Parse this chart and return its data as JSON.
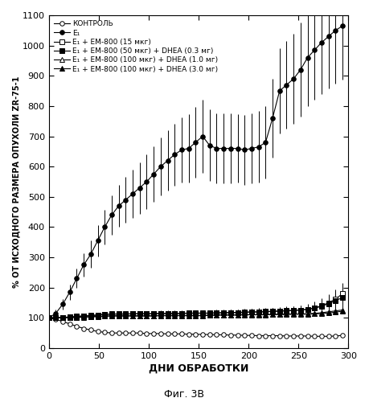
{
  "xlabel": "ДНИ ОБРАБОТКИ",
  "ylabel": "% ОТ ИСХОДНОГО РАЗМЕРА ОПУХОЛИ ZR-75-1",
  "caption": "Фиг. 3В",
  "ylim": [
    0,
    1100
  ],
  "xlim": [
    0,
    300
  ],
  "yticks": [
    0,
    100,
    200,
    300,
    400,
    500,
    600,
    700,
    800,
    900,
    1000,
    1100
  ],
  "xticks": [
    0,
    50,
    100,
    150,
    200,
    250,
    300
  ],
  "series": [
    {
      "label": "КОНТРОЛЬ",
      "marker": "o",
      "filled": false,
      "x": [
        0,
        7,
        14,
        21,
        28,
        35,
        42,
        49,
        56,
        63,
        70,
        77,
        84,
        91,
        98,
        105,
        112,
        119,
        126,
        133,
        140,
        147,
        154,
        161,
        168,
        175,
        182,
        189,
        196,
        203,
        210,
        217,
        224,
        231,
        238,
        245,
        252,
        259,
        266,
        273,
        280,
        287,
        294
      ],
      "y": [
        100,
        95,
        88,
        80,
        72,
        65,
        60,
        55,
        52,
        50,
        50,
        50,
        50,
        50,
        48,
        48,
        48,
        47,
        47,
        47,
        46,
        46,
        45,
        45,
        44,
        44,
        43,
        43,
        42,
        42,
        41,
        41,
        41,
        41,
        40,
        40,
        40,
        40,
        39,
        39,
        39,
        40,
        42
      ],
      "yerr": [
        4,
        4,
        4,
        4,
        4,
        4,
        4,
        4,
        4,
        4,
        4,
        4,
        4,
        4,
        4,
        4,
        4,
        4,
        4,
        4,
        4,
        4,
        4,
        4,
        4,
        4,
        4,
        4,
        4,
        4,
        4,
        4,
        4,
        4,
        4,
        4,
        4,
        4,
        4,
        4,
        4,
        4,
        4
      ]
    },
    {
      "label": "Е₁",
      "marker": "o",
      "filled": true,
      "x": [
        0,
        7,
        14,
        21,
        28,
        35,
        42,
        49,
        56,
        63,
        70,
        77,
        84,
        91,
        98,
        105,
        112,
        119,
        126,
        133,
        140,
        147,
        154,
        161,
        168,
        175,
        182,
        189,
        196,
        203,
        210,
        217,
        224,
        231,
        238,
        245,
        252,
        259,
        266,
        273,
        280,
        287,
        294
      ],
      "y": [
        100,
        115,
        145,
        185,
        230,
        275,
        310,
        355,
        400,
        440,
        470,
        490,
        510,
        530,
        550,
        575,
        600,
        620,
        640,
        655,
        660,
        680,
        700,
        670,
        660,
        660,
        660,
        660,
        655,
        660,
        665,
        680,
        760,
        850,
        870,
        890,
        920,
        960,
        985,
        1010,
        1030,
        1050,
        1065
      ],
      "yerr": [
        8,
        12,
        18,
        25,
        32,
        38,
        45,
        52,
        58,
        65,
        70,
        75,
        80,
        85,
        90,
        92,
        95,
        100,
        102,
        108,
        112,
        118,
        122,
        118,
        115,
        115,
        115,
        112,
        115,
        115,
        118,
        120,
        130,
        140,
        145,
        150,
        155,
        160,
        165,
        170,
        172,
        175,
        178
      ]
    },
    {
      "label": "Е₁ + ЕМ-800 (15 мкг)",
      "marker": "s",
      "filled": false,
      "x": [
        0,
        7,
        14,
        21,
        28,
        35,
        42,
        49,
        56,
        63,
        70,
        77,
        84,
        91,
        98,
        105,
        112,
        119,
        126,
        133,
        140,
        147,
        154,
        161,
        168,
        175,
        182,
        189,
        196,
        203,
        210,
        217,
        224,
        231,
        238,
        245,
        252,
        259,
        266,
        273,
        280,
        287,
        294
      ],
      "y": [
        100,
        100,
        102,
        103,
        105,
        107,
        108,
        110,
        112,
        113,
        113,
        113,
        114,
        114,
        114,
        114,
        115,
        115,
        115,
        115,
        116,
        116,
        116,
        116,
        117,
        117,
        118,
        118,
        119,
        120,
        120,
        121,
        122,
        123,
        124,
        125,
        126,
        128,
        133,
        140,
        150,
        162,
        180
      ],
      "yerr": [
        5,
        5,
        5,
        6,
        6,
        6,
        7,
        7,
        7,
        8,
        8,
        8,
        8,
        8,
        8,
        9,
        9,
        9,
        9,
        9,
        9,
        10,
        10,
        10,
        10,
        10,
        10,
        10,
        11,
        11,
        12,
        12,
        12,
        13,
        13,
        14,
        15,
        18,
        22,
        25,
        28,
        32,
        35
      ]
    },
    {
      "label": "Е₁ + ЕМ-800 (50 мкг) + DHEA (0.3 мг)",
      "marker": "s",
      "filled": true,
      "x": [
        0,
        7,
        14,
        21,
        28,
        35,
        42,
        49,
        56,
        63,
        70,
        77,
        84,
        91,
        98,
        105,
        112,
        119,
        126,
        133,
        140,
        147,
        154,
        161,
        168,
        175,
        182,
        189,
        196,
        203,
        210,
        217,
        224,
        231,
        238,
        245,
        252,
        259,
        266,
        273,
        280,
        287,
        294
      ],
      "y": [
        100,
        100,
        101,
        103,
        104,
        106,
        107,
        109,
        111,
        112,
        112,
        112,
        113,
        113,
        113,
        113,
        114,
        114,
        114,
        114,
        115,
        115,
        115,
        115,
        116,
        116,
        117,
        117,
        118,
        119,
        119,
        120,
        121,
        122,
        123,
        124,
        126,
        128,
        132,
        138,
        147,
        157,
        167
      ],
      "yerr": [
        5,
        5,
        5,
        5,
        6,
        6,
        6,
        7,
        7,
        7,
        7,
        8,
        8,
        8,
        8,
        8,
        8,
        9,
        9,
        9,
        9,
        9,
        9,
        9,
        9,
        10,
        10,
        10,
        10,
        10,
        11,
        11,
        11,
        12,
        12,
        13,
        14,
        16,
        19,
        22,
        26,
        30,
        33
      ]
    },
    {
      "label": "Е₁ + ЕМ-800 (100 мкг) + DHEA (1.0 мг)",
      "marker": "^",
      "filled": false,
      "x": [
        0,
        7,
        14,
        21,
        28,
        35,
        42,
        49,
        56,
        63,
        70,
        77,
        84,
        91,
        98,
        105,
        112,
        119,
        126,
        133,
        140,
        147,
        154,
        161,
        168,
        175,
        182,
        189,
        196,
        203,
        210,
        217,
        224,
        231,
        238,
        245,
        252,
        259,
        266,
        273,
        280,
        287,
        294
      ],
      "y": [
        100,
        100,
        100,
        101,
        102,
        103,
        104,
        105,
        106,
        107,
        107,
        107,
        107,
        107,
        107,
        107,
        108,
        108,
        108,
        108,
        108,
        108,
        108,
        109,
        110,
        110,
        110,
        110,
        111,
        111,
        111,
        111,
        112,
        112,
        113,
        113,
        113,
        114,
        115,
        117,
        120,
        123,
        126
      ],
      "yerr": [
        4,
        4,
        4,
        4,
        5,
        5,
        5,
        5,
        5,
        5,
        5,
        5,
        5,
        5,
        5,
        5,
        5,
        5,
        5,
        5,
        5,
        5,
        5,
        5,
        5,
        5,
        5,
        5,
        5,
        5,
        5,
        5,
        6,
        6,
        6,
        6,
        6,
        7,
        7,
        8,
        8,
        9,
        9
      ]
    },
    {
      "label": "Е₁ + ЕМ-800 (100 мкг) + DHEA (3.0 мг)",
      "marker": "^",
      "filled": true,
      "x": [
        0,
        7,
        14,
        21,
        28,
        35,
        42,
        49,
        56,
        63,
        70,
        77,
        84,
        91,
        98,
        105,
        112,
        119,
        126,
        133,
        140,
        147,
        154,
        161,
        168,
        175,
        182,
        189,
        196,
        203,
        210,
        217,
        224,
        231,
        238,
        245,
        252,
        259,
        266,
        273,
        280,
        287,
        294
      ],
      "y": [
        100,
        100,
        100,
        101,
        101,
        102,
        103,
        104,
        105,
        106,
        106,
        106,
        106,
        106,
        106,
        106,
        107,
        107,
        107,
        107,
        107,
        107,
        107,
        108,
        109,
        109,
        109,
        109,
        110,
        110,
        110,
        110,
        111,
        111,
        111,
        112,
        112,
        112,
        113,
        114,
        116,
        119,
        122
      ],
      "yerr": [
        4,
        4,
        4,
        4,
        4,
        5,
        5,
        5,
        5,
        5,
        5,
        5,
        5,
        5,
        5,
        5,
        5,
        5,
        5,
        5,
        5,
        5,
        5,
        5,
        5,
        5,
        5,
        5,
        5,
        5,
        5,
        5,
        5,
        5,
        5,
        5,
        6,
        6,
        6,
        7,
        7,
        8,
        8
      ]
    }
  ]
}
